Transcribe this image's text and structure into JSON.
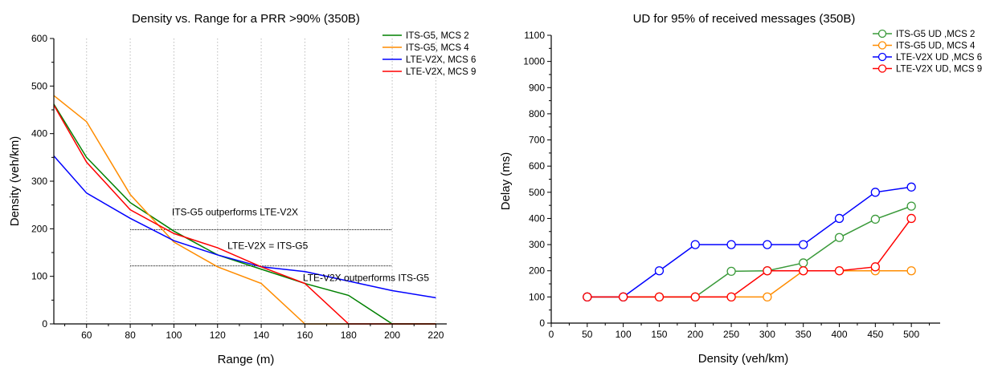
{
  "chart_data": [
    {
      "type": "line",
      "title": "Density vs. Range for a PRR >90% (350B)",
      "xlabel": "Range (m)",
      "ylabel": "Density (veh/km)",
      "xlim": [
        45,
        225
      ],
      "ylim": [
        0,
        600
      ],
      "xticks": [
        60,
        80,
        100,
        120,
        140,
        160,
        180,
        200,
        220
      ],
      "yticks": [
        0,
        100,
        200,
        300,
        400,
        500,
        600
      ],
      "grid": "x-dotted",
      "legend_position": "top-right",
      "series": [
        {
          "name": "ITS-G5, MCS 2",
          "color": "#008000",
          "x": [
            45,
            60,
            80,
            100,
            120,
            140,
            160,
            180,
            200,
            220
          ],
          "y": [
            462,
            350,
            255,
            195,
            145,
            115,
            85,
            60,
            0,
            0
          ]
        },
        {
          "name": "ITS-G5, MCS 4",
          "color": "#ff8c00",
          "x": [
            45,
            60,
            80,
            100,
            120,
            140,
            160,
            180,
            200,
            220
          ],
          "y": [
            480,
            425,
            272,
            172,
            120,
            85,
            0,
            0,
            0,
            0
          ]
        },
        {
          "name": "LTE-V2X, MCS 6",
          "color": "#0000ff",
          "x": [
            45,
            60,
            80,
            100,
            120,
            140,
            160,
            180,
            200,
            220
          ],
          "y": [
            353,
            275,
            222,
            175,
            145,
            120,
            110,
            90,
            70,
            55
          ]
        },
        {
          "name": "LTE-V2X, MCS 9",
          "color": "#ff0000",
          "x": [
            45,
            60,
            80,
            100,
            120,
            140,
            160,
            180,
            200,
            220
          ],
          "y": [
            460,
            340,
            240,
            190,
            160,
            120,
            85,
            0,
            0,
            0
          ]
        }
      ],
      "reference_lines": [
        {
          "y": 198,
          "x_from": 80,
          "x_to": 200
        },
        {
          "y": 122,
          "x_from": 80,
          "x_to": 200
        }
      ],
      "annotations": [
        {
          "text": "ITS-G5 outperforms LTE-V2X",
          "x": 128,
          "y": 228
        },
        {
          "text": "LTE-V2X = ITS-G5",
          "x": 143,
          "y": 158
        },
        {
          "text": "LTE-V2X outperforms ITS-G5",
          "x": 188,
          "y": 90
        }
      ]
    },
    {
      "type": "line",
      "title": "UD for 95% of received messages (350B)",
      "xlabel": "Density (veh/km)",
      "ylabel": "Delay (ms)",
      "xlim": [
        0,
        540
      ],
      "ylim": [
        0,
        1100
      ],
      "xticks": [
        0,
        50,
        100,
        150,
        200,
        250,
        300,
        350,
        400,
        450,
        500
      ],
      "yticks": [
        0,
        100,
        200,
        300,
        400,
        500,
        600,
        700,
        800,
        900,
        1000,
        1100
      ],
      "grid": "none",
      "legend_position": "top-right",
      "series": [
        {
          "name": "ITS-G5 UD ,MCS 2",
          "color": "#3a9a3a",
          "x": [
            50,
            100,
            150,
            200,
            250,
            300,
            350,
            400,
            450,
            500
          ],
          "y": [
            100,
            100,
            100,
            100,
            198,
            200,
            230,
            327,
            397,
            447
          ]
        },
        {
          "name": "ITS-G5 UD, MCS 4",
          "color": "#ff8c00",
          "x": [
            50,
            100,
            150,
            200,
            250,
            300,
            350,
            400,
            450,
            500
          ],
          "y": [
            100,
            100,
            100,
            100,
            100,
            100,
            200,
            200,
            200,
            200
          ]
        },
        {
          "name": "LTE-V2X UD ,MCS 6",
          "color": "#0000ff",
          "x": [
            50,
            100,
            150,
            200,
            250,
            300,
            350,
            400,
            450,
            500
          ],
          "y": [
            100,
            100,
            200,
            300,
            300,
            300,
            300,
            400,
            500,
            520
          ]
        },
        {
          "name": "LTE-V2X UD, MCS 9",
          "color": "#ff0000",
          "x": [
            50,
            100,
            150,
            200,
            250,
            300,
            350,
            400,
            450,
            500
          ],
          "y": [
            100,
            100,
            100,
            100,
            100,
            200,
            200,
            200,
            215,
            400
          ]
        }
      ]
    }
  ]
}
